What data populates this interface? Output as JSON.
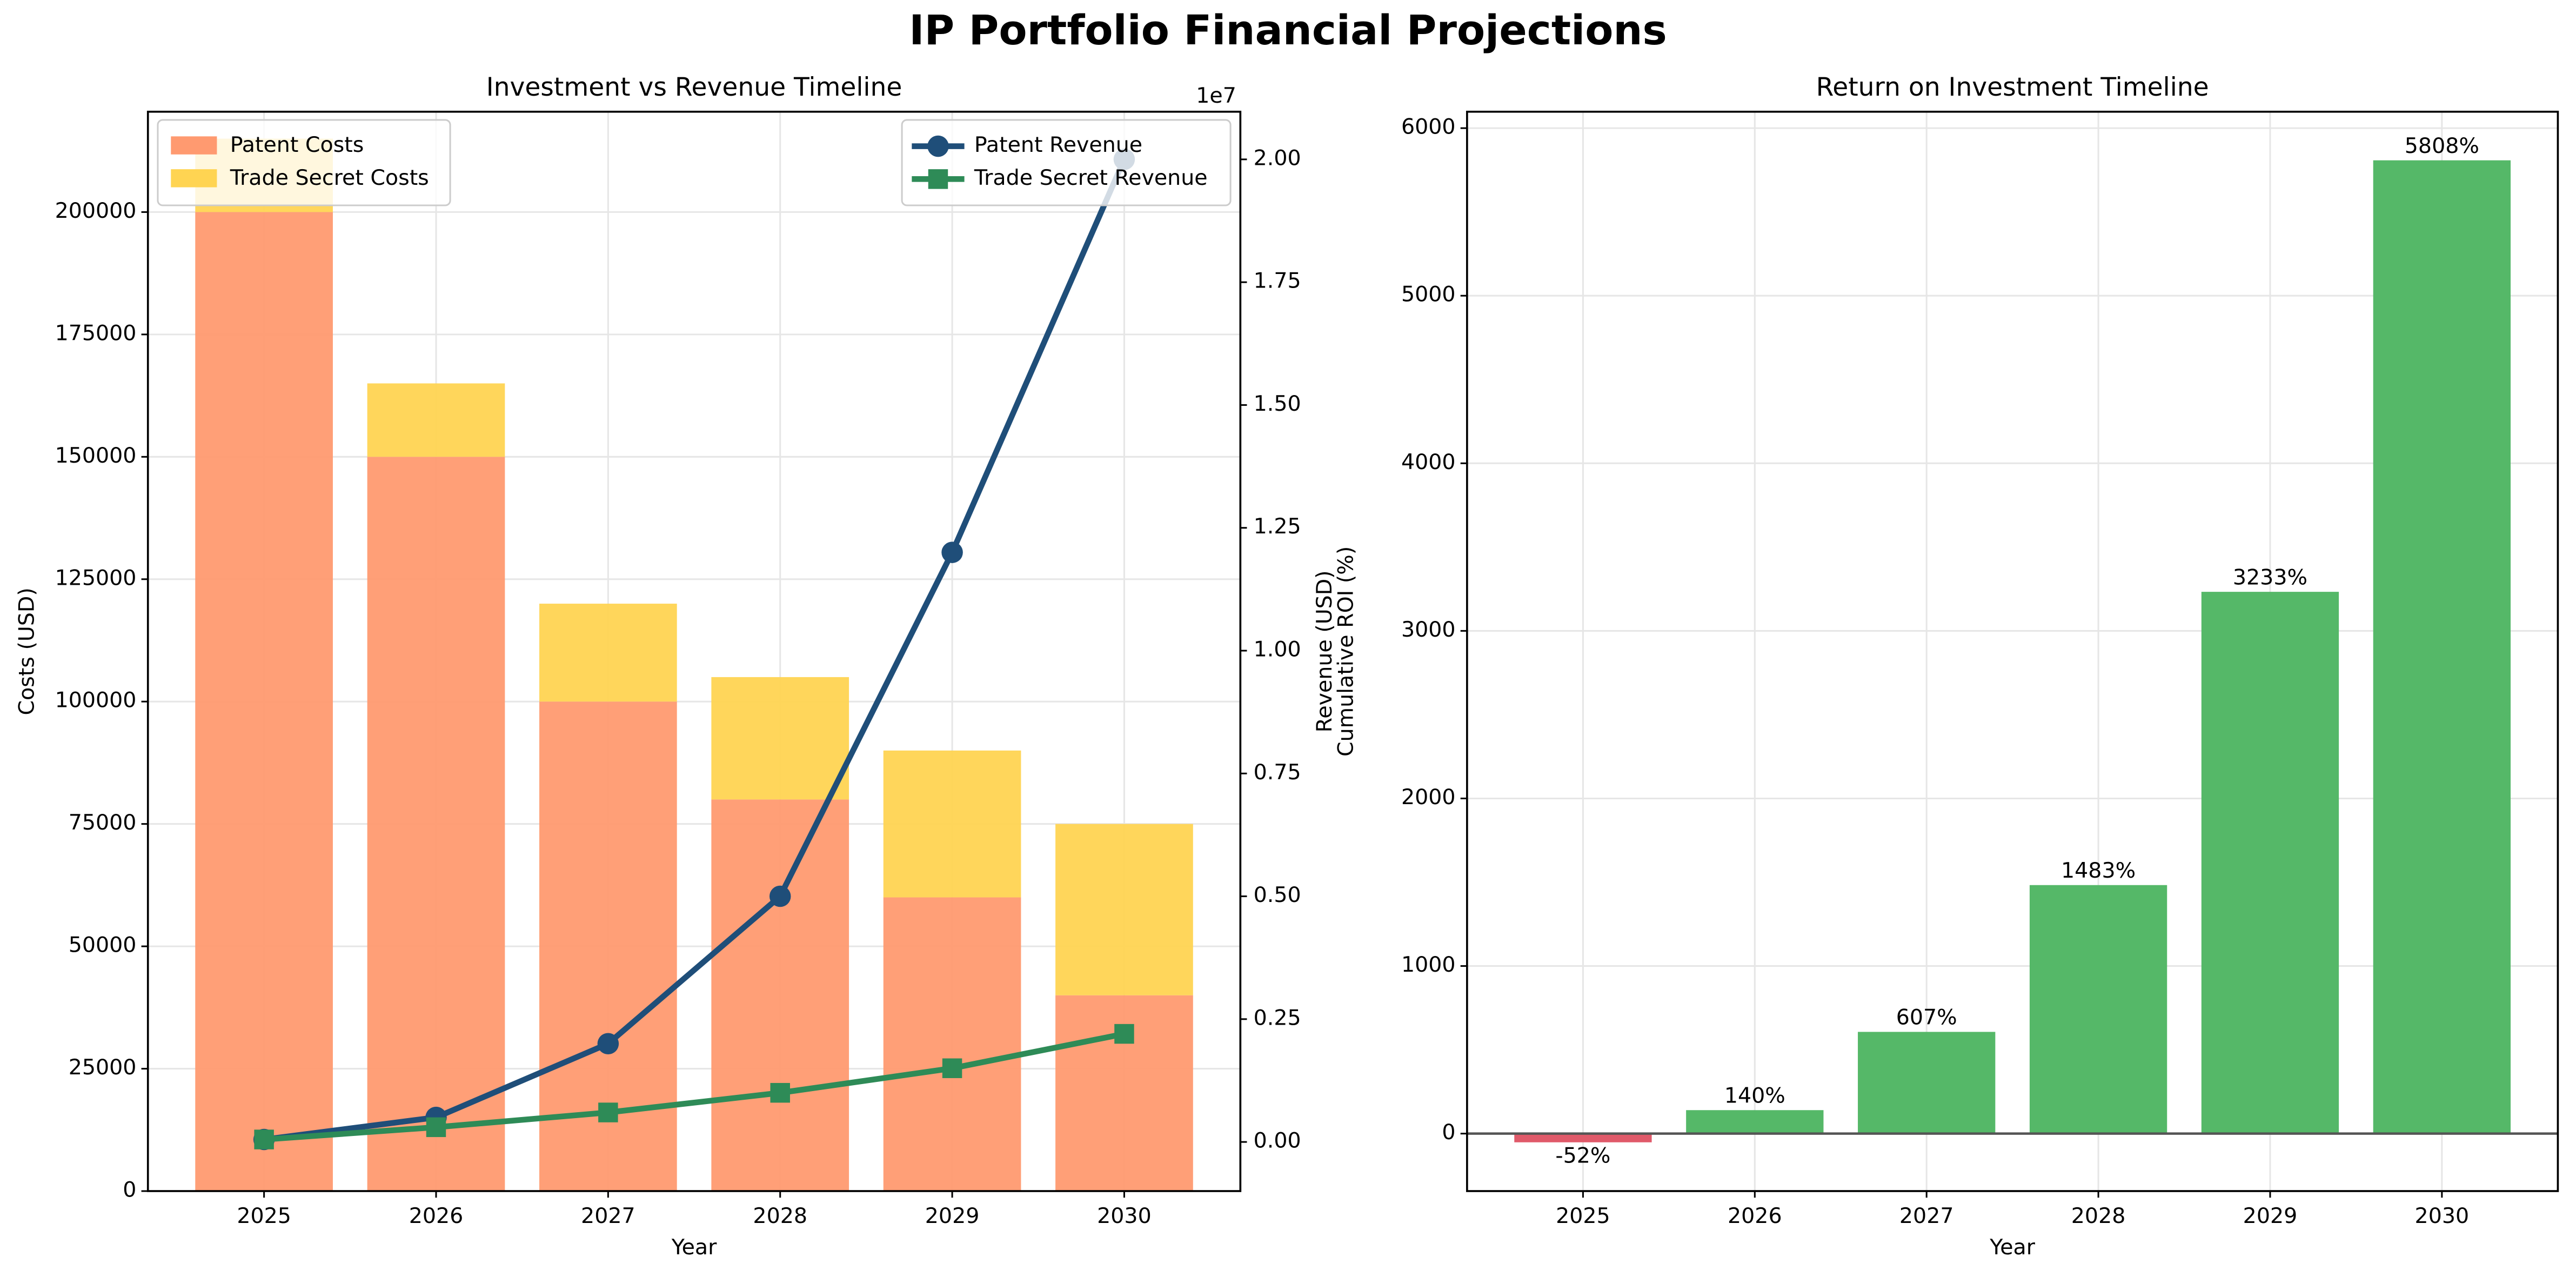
{
  "title": "IP Portfolio Financial Projections",
  "chart_data": [
    {
      "type": "bar_line",
      "title": "Investment vs Revenue Timeline",
      "xlabel": "Year",
      "ylabel": "Costs (USD)",
      "y2label": "Revenue (USD)",
      "categories": [
        "2025",
        "2026",
        "2027",
        "2028",
        "2029",
        "2030"
      ],
      "series": [
        {
          "name": "Patent Costs",
          "kind": "bar",
          "color": "#ff9a70",
          "values": [
            200000,
            150000,
            100000,
            80000,
            60000,
            40000
          ]
        },
        {
          "name": "Trade Secret Costs",
          "kind": "bar",
          "color": "#ffd452",
          "values": [
            15000,
            15000,
            20000,
            25000,
            30000,
            35000
          ]
        },
        {
          "name": "Patent Revenue",
          "kind": "line",
          "marker": "circle",
          "axis": "y2",
          "color": "#1f4e79",
          "values": [
            50000,
            500000,
            2000000,
            5000000,
            12000000,
            20000000
          ]
        },
        {
          "name": "Trade Secret Revenue",
          "kind": "line",
          "marker": "square",
          "axis": "y2",
          "color": "#2e8b57",
          "values": [
            50000,
            300000,
            600000,
            1000000,
            1500000,
            2200000
          ]
        }
      ],
      "ylim": [
        0,
        220500
      ],
      "yticks": [
        0,
        25000,
        50000,
        75000,
        100000,
        125000,
        150000,
        175000,
        200000
      ],
      "y2lim": [
        -1000000,
        20970000
      ],
      "y2ticks": [
        {
          "value": 0,
          "label": "0.00"
        },
        {
          "value": 2500000,
          "label": "0.25"
        },
        {
          "value": 5000000,
          "label": "0.50"
        },
        {
          "value": 7500000,
          "label": "0.75"
        },
        {
          "value": 10000000,
          "label": "1.00"
        },
        {
          "value": 12500000,
          "label": "1.25"
        },
        {
          "value": 15000000,
          "label": "1.50"
        },
        {
          "value": 17500000,
          "label": "1.75"
        },
        {
          "value": 20000000,
          "label": "2.00"
        }
      ],
      "y2_offset_label": "1e7",
      "grid": true,
      "legend": "upper left",
      "legend2": "upper right"
    },
    {
      "type": "bar",
      "title": "Return on Investment Timeline",
      "xlabel": "Year",
      "ylabel": "Cumulative ROI (%)",
      "categories": [
        "2025",
        "2026",
        "2027",
        "2028",
        "2029",
        "2030"
      ],
      "values": [
        -52,
        140,
        607,
        1483,
        3233,
        5808
      ],
      "value_labels": [
        "-52%",
        "140%",
        "607%",
        "1483%",
        "3233%",
        "5808%"
      ],
      "colors": [
        "#e05a6a",
        "#55b868",
        "#55b868",
        "#55b868",
        "#55b868",
        "#55b868"
      ],
      "ylim": [
        -343,
        6098
      ],
      "yticks": [
        0,
        1000,
        2000,
        3000,
        4000,
        5000,
        6000
      ],
      "grid": true
    }
  ]
}
